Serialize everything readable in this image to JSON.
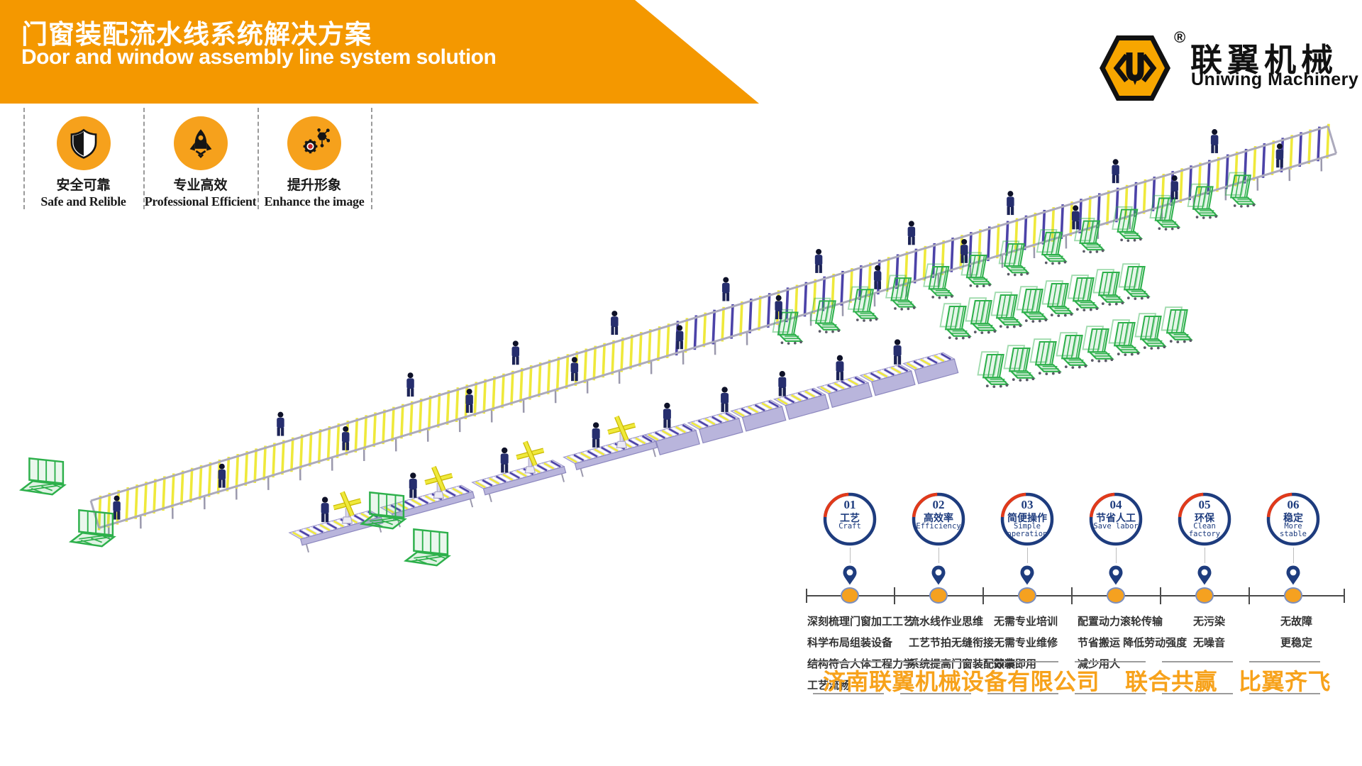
{
  "header": {
    "title_cn": "门窗装配流水线系统解决方案",
    "title_en": "Door and window assembly line system solution"
  },
  "logo": {
    "registered": "®",
    "name_cn": "联翼机械",
    "name_en": "Uniwing Machinery"
  },
  "badges": [
    {
      "icon": "shield-icon",
      "label_cn": "安全可靠",
      "label_en": "Safe and Relible"
    },
    {
      "icon": "rocket-icon",
      "label_cn": "专业高效",
      "label_en": "Professional Efficient"
    },
    {
      "icon": "gear-network-icon",
      "label_cn": "提升形象",
      "label_en": "Enhance the image"
    }
  ],
  "timeline": {
    "items": [
      {
        "num": "01",
        "cn": "工艺",
        "en": "Craft"
      },
      {
        "num": "02",
        "cn": "高效率",
        "en": "Efficiency"
      },
      {
        "num": "03",
        "cn": "简便操作",
        "en": "Simple operation"
      },
      {
        "num": "04",
        "cn": "节省人工",
        "en": "Save labor"
      },
      {
        "num": "05",
        "cn": "环保",
        "en": "Clean factory"
      },
      {
        "num": "06",
        "cn": "稳定",
        "en": "More stable"
      }
    ]
  },
  "features": {
    "columns": [
      {
        "lines": [
          "深刻梳理门窗加工工艺",
          "科学布局组装设备",
          "结构符合人体工程力学",
          "工艺流畅"
        ]
      },
      {
        "lines": [
          "流水线作业思维",
          "工艺节拍无缝衔接",
          "系统提高门窗装配效率"
        ]
      },
      {
        "lines": [
          "无需专业培训",
          "无需专业维修",
          "即装即用"
        ]
      },
      {
        "lines": [
          "配置动力滚轮传输",
          "节省搬运 降低劳动强度",
          "减少用人"
        ]
      },
      {
        "lines": [
          "无污染",
          "无噪音"
        ]
      },
      {
        "lines": [
          "无故障",
          "更稳定"
        ]
      }
    ]
  },
  "footer": {
    "company": "济南联翼机械设备有限公司",
    "slogan_1": "联合共赢",
    "slogan_2": "比翼齐飞"
  },
  "colors": {
    "banner_orange": "#F49800",
    "logo_orange": "#F7A600",
    "badge_orange": "#F6A11C",
    "timeline_navy": "#1E3C7E",
    "timeline_red": "#E23A1A",
    "dot_orange": "#F5A120",
    "footer_orange": "#F7A21B",
    "rack_green": "#2DB04B",
    "roller_yellow": "#EFE93B",
    "roller_purple": "#4C43A8",
    "worker_navy": "#262E6E",
    "frame_gray": "#ACAABC",
    "table_lavender": "#B9B5DC"
  },
  "illustration": {
    "elements": [
      "roller-conveyor-line",
      "assembly-station-line",
      "worker-figures",
      "glass-rack-trolleys",
      "l-shaped-glass-racks",
      "rotary-cross-fixtures"
    ]
  }
}
